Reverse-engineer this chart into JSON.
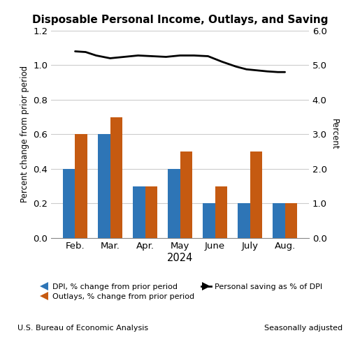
{
  "title": "Disposable Personal Income, Outlays, and Saving",
  "months": [
    "Feb.",
    "Mar.",
    "Apr.",
    "May",
    "June",
    "July",
    "Aug."
  ],
  "year_label": "2024",
  "dpi_values": [
    0.4,
    0.6,
    0.3,
    0.4,
    0.2,
    0.2,
    0.2
  ],
  "outlays_values": [
    0.6,
    0.7,
    0.3,
    0.5,
    0.3,
    0.5,
    0.2
  ],
  "saving_x": [
    0,
    0.3,
    0.6,
    1.0,
    1.4,
    1.8,
    2.2,
    2.6,
    3.0,
    3.4,
    3.8,
    4.2,
    4.6,
    4.9,
    5.2,
    5.5,
    5.8,
    6.0
  ],
  "saving_y": [
    5.4,
    5.38,
    5.28,
    5.2,
    5.24,
    5.28,
    5.26,
    5.24,
    5.28,
    5.28,
    5.26,
    5.1,
    4.96,
    4.88,
    4.85,
    4.82,
    4.8,
    4.8
  ],
  "dpi_color": "#2E75B6",
  "outlays_color": "#C55A11",
  "saving_color": "#000000",
  "left_ylim": [
    0.0,
    1.2
  ],
  "left_yticks": [
    0.0,
    0.2,
    0.4,
    0.6,
    0.8,
    1.0,
    1.2
  ],
  "right_ylim": [
    0.0,
    6.0
  ],
  "right_yticks": [
    0.0,
    1.0,
    2.0,
    3.0,
    4.0,
    5.0,
    6.0
  ],
  "left_ylabel": "Percent change from prior period",
  "right_ylabel": "Percent",
  "legend_dpi": "DPI, % change from prior period",
  "legend_outlays": "Outlays, % change from prior period",
  "legend_saving": "Personal saving as % of DPI",
  "footer_left": "U.S. Bureau of Economic Analysis",
  "footer_right": "Seasonally adjusted",
  "fig_width": 5.05,
  "fig_height": 4.87,
  "dpi": 100
}
